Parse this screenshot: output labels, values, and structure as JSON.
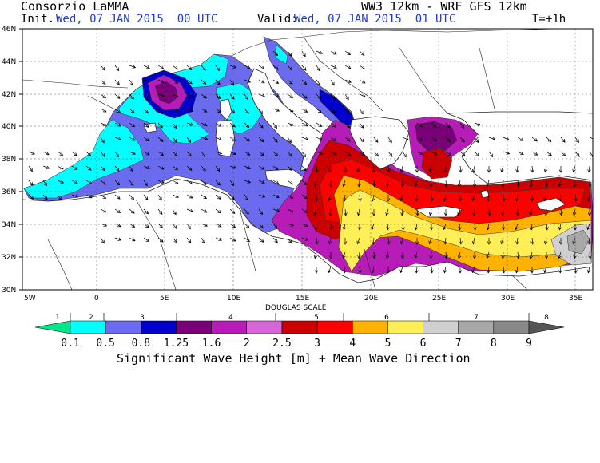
{
  "header": {
    "org": "Consorzio LaMMA",
    "model": "WW3 12km - WRF GFS 12km",
    "init_label": "Init.:",
    "init_value": "Wed, 07 JAN 2015  00 UTC",
    "valid_label": "Valid:",
    "valid_value": "Wed, 07 JAN 2015  01 UTC",
    "step": "T=+1h"
  },
  "axes": {
    "lat_labels": [
      "46N",
      "44N",
      "42N",
      "40N",
      "38N",
      "36N",
      "34N",
      "32N",
      "30N"
    ],
    "lon_labels": [
      "5W",
      "0",
      "5E",
      "10E",
      "15E",
      "20E",
      "25E",
      "30E",
      "35E"
    ]
  },
  "legend": {
    "scale_title": "DOUGLAS SCALE",
    "douglas": [
      "1",
      "2",
      "3",
      "4",
      "5",
      "6",
      "7",
      "8"
    ],
    "thresholds": [
      "0.1",
      "0.5",
      "0.8",
      "1.25",
      "1.6",
      "2",
      "2.5",
      "3",
      "4",
      "5",
      "6",
      "7",
      "8",
      "9"
    ],
    "colors": [
      "#00e68a",
      "#00ffff",
      "#6b6bf0",
      "#0000cc",
      "#7a007a",
      "#b81cb8",
      "#d966d9",
      "#cc0000",
      "#ff0000",
      "#ffb300",
      "#ffee55",
      "#d0d0d0",
      "#a8a8a8",
      "#888888",
      "#555555"
    ],
    "title": "Significant Wave Height [m] + Mean Wave Direction"
  }
}
